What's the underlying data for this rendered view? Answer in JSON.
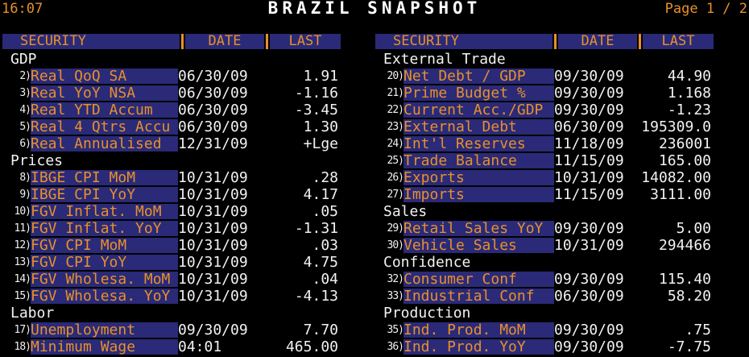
{
  "header": {
    "time": "16:07",
    "title": "BRAZIL SNAPSHOT",
    "page": "Page 1 / 2"
  },
  "columns_header": {
    "security": "SECURITY",
    "date": "DATE",
    "last": "LAST"
  },
  "left": [
    {
      "type": "section",
      "label": "GDP"
    },
    {
      "type": "item",
      "num": "2)",
      "name": "Real QoQ SA",
      "date": "06/30/09",
      "last": "1.91"
    },
    {
      "type": "item",
      "num": "3)",
      "name": "Real YoY NSA",
      "date": "06/30/09",
      "last": "-1.16"
    },
    {
      "type": "item",
      "num": "4)",
      "name": "Real YTD Accum",
      "date": "06/30/09",
      "last": "-3.45"
    },
    {
      "type": "item",
      "num": "5)",
      "name": "Real 4 Qtrs Accu",
      "date": "06/30/09",
      "last": "1.30"
    },
    {
      "type": "item",
      "num": "6)",
      "name": "Real Annualised",
      "date": "12/31/09",
      "last": "+Lge"
    },
    {
      "type": "section",
      "label": "Prices"
    },
    {
      "type": "item",
      "num": "8)",
      "name": "IBGE CPI MoM",
      "date": "10/31/09",
      "last": ".28"
    },
    {
      "type": "item",
      "num": "9)",
      "name": "IBGE CPI YoY",
      "date": "10/31/09",
      "last": "4.17"
    },
    {
      "type": "item",
      "num": "10)",
      "name": "FGV Inflat. MoM",
      "date": "10/31/09",
      "last": ".05"
    },
    {
      "type": "item",
      "num": "11)",
      "name": "FGV Inflat. YoY",
      "date": "10/31/09",
      "last": "-1.31"
    },
    {
      "type": "item",
      "num": "12)",
      "name": "FGV CPI MoM",
      "date": "10/31/09",
      "last": ".03"
    },
    {
      "type": "item",
      "num": "13)",
      "name": "FGV CPI YoY",
      "date": "10/31/09",
      "last": "4.75"
    },
    {
      "type": "item",
      "num": "14)",
      "name": "FGV Wholesa. MoM",
      "date": "10/31/09",
      "last": ".04"
    },
    {
      "type": "item",
      "num": "15)",
      "name": "FGV Wholesa. YoY",
      "date": "10/31/09",
      "last": "-4.13"
    },
    {
      "type": "section",
      "label": "Labor"
    },
    {
      "type": "item",
      "num": "17)",
      "name": "Unemployment",
      "date": "09/30/09",
      "last": "7.70"
    },
    {
      "type": "item",
      "num": "18)",
      "name": "Minimum Wage",
      "date": "04:01",
      "last": "465.00"
    }
  ],
  "right": [
    {
      "type": "section",
      "label": "External Trade"
    },
    {
      "type": "item",
      "num": "20)",
      "name": "Net Debt / GDP",
      "date": "09/30/09",
      "last": "44.90"
    },
    {
      "type": "item",
      "num": "21)",
      "name": "Prime Budget %",
      "date": "09/30/09",
      "last": "1.168"
    },
    {
      "type": "item",
      "num": "22)",
      "name": "Current Acc./GDP",
      "date": "09/30/09",
      "last": "-1.23"
    },
    {
      "type": "item",
      "num": "23)",
      "name": "External Debt",
      "date": "06/30/09",
      "last": "195309.0"
    },
    {
      "type": "item",
      "num": "24)",
      "name": "Int'l Reserves",
      "date": "11/18/09",
      "last": "236001"
    },
    {
      "type": "item",
      "num": "25)",
      "name": "Trade Balance",
      "date": "11/15/09",
      "last": "165.00"
    },
    {
      "type": "item",
      "num": "26)",
      "name": "Exports",
      "date": "10/31/09",
      "last": "14082.00"
    },
    {
      "type": "item",
      "num": "27)",
      "name": "Imports",
      "date": "11/15/09",
      "last": "3111.00"
    },
    {
      "type": "section",
      "label": "Sales"
    },
    {
      "type": "item",
      "num": "29)",
      "name": "Retail Sales YoY",
      "date": "09/30/09",
      "last": "5.00"
    },
    {
      "type": "item",
      "num": "30)",
      "name": "Vehicle Sales",
      "date": "10/31/09",
      "last": "294466"
    },
    {
      "type": "section",
      "label": "Confidence"
    },
    {
      "type": "item",
      "num": "32)",
      "name": "Consumer Conf",
      "date": "09/30/09",
      "last": "115.40"
    },
    {
      "type": "item",
      "num": "33)",
      "name": "Industrial Conf",
      "date": "06/30/09",
      "last": "58.20"
    },
    {
      "type": "section",
      "label": "Production"
    },
    {
      "type": "item",
      "num": "35)",
      "name": "Ind. Prod. MoM",
      "date": "09/30/09",
      "last": ".75"
    },
    {
      "type": "item",
      "num": "36)",
      "name": "Ind. Prod. YoY",
      "date": "09/30/09",
      "last": "-7.75"
    }
  ]
}
